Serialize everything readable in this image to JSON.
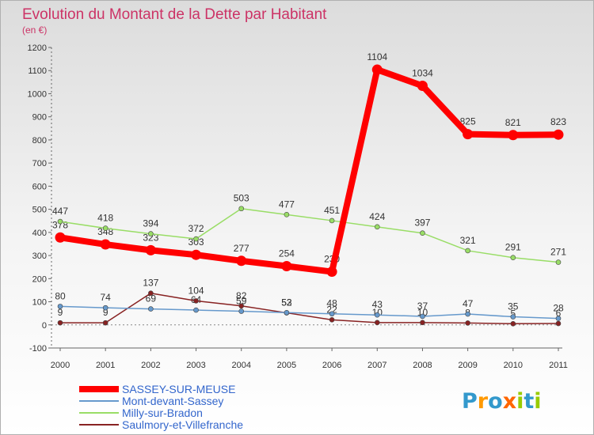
{
  "chart_data": {
    "type": "line",
    "title": "Evolution du Montant de la Dette par Habitant",
    "subtitle": "(en €)",
    "x": [
      "2000",
      "2001",
      "2002",
      "2003",
      "2004",
      "2005",
      "2006",
      "2007",
      "2008",
      "2009",
      "2010",
      "2011"
    ],
    "yticks": [
      -100,
      0,
      100,
      200,
      300,
      400,
      500,
      600,
      700,
      800,
      900,
      1000,
      1100,
      1200
    ],
    "ylim": [
      -100,
      1200
    ],
    "grid": false,
    "legend_position": "bottom-left",
    "series": [
      {
        "name": "SASSEY-SUR-MEUSE",
        "color": "#ff0000",
        "values": [
          378,
          348,
          323,
          303,
          277,
          254,
          230,
          1104,
          1034,
          825,
          821,
          823
        ]
      },
      {
        "name": "Mont-devant-Sassey",
        "color": "#6699cc",
        "values": [
          80,
          74,
          69,
          64,
          59,
          53,
          48,
          43,
          37,
          47,
          35,
          28
        ]
      },
      {
        "name": "Milly-sur-Bradon",
        "color": "#99dd66",
        "values": [
          447,
          418,
          394,
          372,
          503,
          477,
          451,
          424,
          397,
          321,
          291,
          271
        ]
      },
      {
        "name": "Saulmory-et-Villefranche",
        "color": "#882222",
        "values": [
          9,
          9,
          137,
          104,
          82,
          52,
          22,
          10,
          10,
          8,
          5,
          6
        ]
      }
    ]
  },
  "logo": {
    "text": "Proxiti"
  }
}
